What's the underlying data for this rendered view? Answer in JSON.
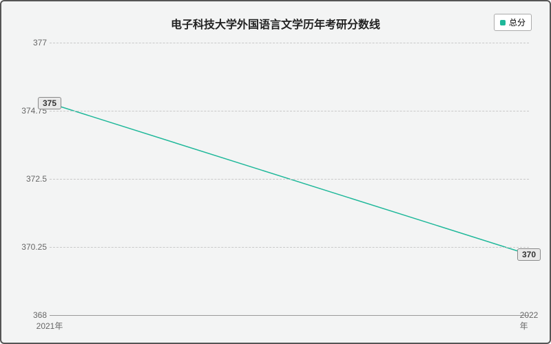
{
  "chart": {
    "type": "line",
    "title": "电子科技大学外国语言文学历年考研分数线",
    "title_fontsize": 16,
    "background_color": "#f3f4f4",
    "border_color": "#555555",
    "grid_color": "#c8c8c8",
    "grid_dashed": true,
    "series": {
      "name": "总分",
      "color": "#1fb89a",
      "line_width": 1.5,
      "marker": "square",
      "marker_size": 5,
      "x": [
        "2021年",
        "2022年"
      ],
      "y": [
        375,
        370
      ],
      "value_labels": [
        "375",
        "370"
      ],
      "label_bg": "#e9e9e9",
      "label_border": "#888888"
    },
    "y_axis": {
      "min": 368,
      "max": 377,
      "ticks": [
        368,
        370.25,
        372.5,
        374.75,
        377
      ],
      "tick_labels": [
        "368",
        "370.25",
        "372.5",
        "374.75",
        "377"
      ],
      "label_fontsize": 12,
      "label_color": "#666666"
    },
    "x_axis": {
      "categories": [
        "2021年",
        "2022年"
      ],
      "label_fontsize": 12,
      "label_color": "#666666"
    },
    "legend": {
      "position": "top-right",
      "bg": "#ffffff",
      "border": "#aaaaaa"
    }
  }
}
